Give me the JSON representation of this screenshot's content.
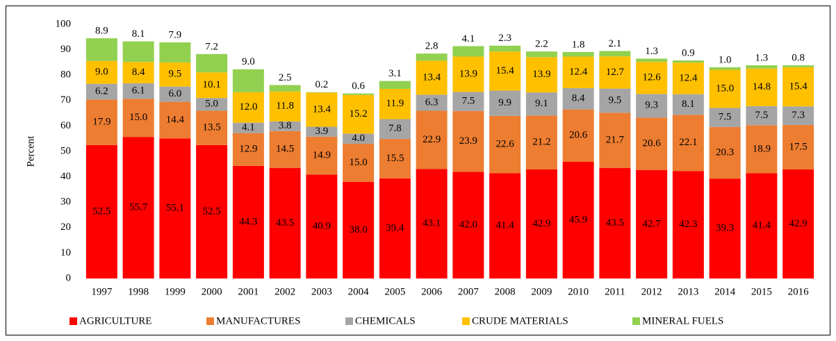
{
  "chart_data": {
    "type": "stacked_bar",
    "ylabel": "Percent",
    "categories": [
      "1997",
      "1998",
      "1999",
      "2000",
      "2001",
      "2002",
      "2003",
      "2004",
      "2005",
      "2006",
      "2007",
      "2008",
      "2009",
      "2010",
      "2011",
      "2012",
      "2013",
      "2014",
      "2015",
      "2016"
    ],
    "ylim": [
      0,
      100
    ],
    "yticks": [
      0,
      10,
      20,
      30,
      40,
      50,
      60,
      70,
      80,
      90,
      100
    ],
    "grid": false,
    "legend": "bottom",
    "series": [
      {
        "name": "AGRICULTURE",
        "color": "#ff0000",
        "values": [
          52.5,
          55.7,
          55.1,
          52.5,
          44.3,
          43.5,
          40.9,
          38.0,
          39.4,
          43.1,
          42.0,
          41.4,
          42.9,
          45.9,
          43.5,
          42.7,
          42.3,
          39.3,
          41.4,
          42.9
        ],
        "value_labels": [
          "52.5",
          "55.7",
          "55.1",
          "52.5",
          "44.3",
          "43.5",
          "40.9",
          "38.0",
          "39.4",
          "43.1",
          "42.0",
          "41.4",
          "42.9",
          "45.9",
          "43.5",
          "42.7",
          "42.3",
          "39.3",
          "41.4",
          "42.9"
        ]
      },
      {
        "name": "MANUFACTURES",
        "color": "#ed7d31",
        "values": [
          17.9,
          15.0,
          14.4,
          13.5,
          12.9,
          14.5,
          14.9,
          15.0,
          15.5,
          22.9,
          23.9,
          22.6,
          21.2,
          20.6,
          21.7,
          20.6,
          22.1,
          20.3,
          18.9,
          17.5
        ],
        "value_labels": [
          "17.9",
          "15.0",
          "14.4",
          "13.5",
          "12.9",
          "14.5",
          "14.9",
          "15.0",
          "15.5",
          "22.9",
          "23.9",
          "22.6",
          "21.2",
          "20.6",
          "21.7",
          "20.6",
          "22.1",
          "20.3",
          "18.9",
          "17.5"
        ]
      },
      {
        "name": "CHEMICALS",
        "color": "#a5a5a5",
        "values": [
          6.2,
          6.1,
          6.0,
          5.0,
          4.1,
          3.8,
          3.9,
          4.0,
          7.8,
          6.3,
          7.5,
          9.9,
          9.1,
          8.4,
          9.5,
          9.3,
          8.1,
          7.5,
          7.5,
          7.3
        ],
        "value_labels": [
          "6.2",
          "6.1",
          "6.0",
          "5.0",
          "4.1",
          "3.8",
          "3.9",
          "4.0",
          "7.8",
          "6.3",
          "7.5",
          "9.9",
          "9.1",
          "8.4",
          "9.5",
          "9.3",
          "8.1",
          "7.5",
          "7.5",
          "7.3"
        ]
      },
      {
        "name": "CRUDE MATERIALS",
        "color": "#ffc000",
        "values": [
          9.0,
          8.4,
          9.5,
          10.1,
          12.0,
          11.8,
          13.4,
          15.2,
          11.9,
          13.4,
          13.9,
          15.4,
          13.9,
          12.4,
          12.7,
          12.6,
          12.4,
          15.0,
          14.8,
          15.4
        ],
        "value_labels": [
          "9.0",
          "8.4",
          "9.5",
          "10.1",
          "12.0",
          "11.8",
          "13.4",
          "15.2",
          "11.9",
          "13.4",
          "13.9",
          "15.4",
          "13.9",
          "12.4",
          "12.7",
          "12.6",
          "12.4",
          "15.0",
          "14.8",
          "15.4"
        ]
      },
      {
        "name": "MINERAL FUELS",
        "color": "#92d050",
        "values": [
          8.9,
          8.1,
          7.9,
          7.2,
          9.0,
          2.5,
          0.2,
          0.6,
          3.1,
          2.8,
          4.1,
          2.3,
          2.2,
          1.8,
          2.1,
          1.3,
          0.9,
          1.0,
          1.3,
          0.8
        ],
        "value_labels": [
          "8.9",
          "8.1",
          "7.9",
          "7.2",
          "9.0",
          "2.5",
          "0.2",
          "0.6",
          "3.1",
          "2.8",
          "4.1",
          "2.3",
          "2.2",
          "1.8",
          "2.1",
          "1.3",
          "0.9",
          "1.0",
          "1.3",
          "0.8"
        ]
      }
    ]
  }
}
